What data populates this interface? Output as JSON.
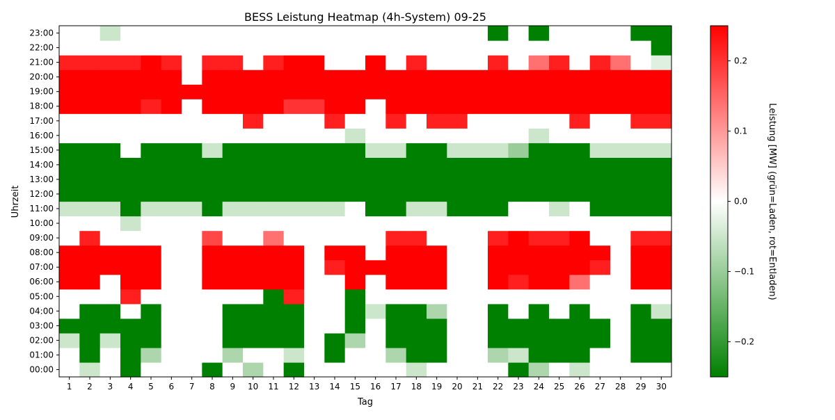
{
  "chart_data": {
    "type": "heatmap",
    "title": "BESS Leistung Heatmap (4h-System) 09-25",
    "xlabel": "Tag",
    "ylabel": "Uhrzeit",
    "colorbar_label": "Leistung [MW] (grün=Laden, rot=Entladen)",
    "colorbar_ticks": [
      "0.2",
      "0.1",
      "0.0",
      "−0.1",
      "−0.2"
    ],
    "colorbar_tick_values": [
      0.2,
      0.1,
      0.0,
      -0.1,
      -0.2
    ],
    "vmin": -0.25,
    "vmax": 0.25,
    "colors": {
      "min": "#008000",
      "mid": "#ffffff",
      "max": "#ff0000"
    },
    "x": [
      "1",
      "2",
      "3",
      "4",
      "5",
      "6",
      "7",
      "8",
      "9",
      "10",
      "11",
      "12",
      "13",
      "14",
      "15",
      "16",
      "17",
      "18",
      "19",
      "20",
      "21",
      "22",
      "23",
      "24",
      "25",
      "26",
      "27",
      "28",
      "29",
      "30"
    ],
    "y": [
      "00:00",
      "01:00",
      "02:00",
      "03:00",
      "04:00",
      "05:00",
      "06:00",
      "07:00",
      "08:00",
      "09:00",
      "10:00",
      "11:00",
      "12:00",
      "13:00",
      "14:00",
      "15:00",
      "16:00",
      "17:00",
      "18:00",
      "19:00",
      "20:00",
      "21:00",
      "22:00",
      "23:00"
    ],
    "z": [
      [
        0,
        -0.05,
        0,
        -0.25,
        0,
        0,
        0,
        -0.25,
        0,
        -0.08,
        0,
        -0.25,
        0,
        0,
        0,
        0,
        0,
        -0.05,
        0,
        0,
        0,
        0,
        -0.25,
        -0.08,
        0,
        -0.05,
        0,
        0,
        0,
        0
      ],
      [
        0,
        -0.25,
        0,
        -0.25,
        -0.08,
        0,
        0,
        0,
        -0.08,
        0,
        0,
        -0.05,
        0,
        -0.25,
        0,
        0,
        -0.08,
        -0.25,
        -0.25,
        0,
        0,
        -0.08,
        -0.05,
        -0.25,
        -0.25,
        -0.25,
        0,
        0,
        -0.25,
        -0.25
      ],
      [
        -0.05,
        -0.25,
        -0.05,
        -0.25,
        -0.25,
        0,
        0,
        0,
        -0.25,
        -0.25,
        -0.25,
        -0.25,
        0,
        -0.25,
        -0.08,
        0,
        -0.25,
        -0.25,
        -0.25,
        0,
        0,
        -0.25,
        -0.25,
        -0.25,
        -0.25,
        -0.25,
        -0.25,
        0,
        -0.25,
        -0.25
      ],
      [
        -0.25,
        -0.25,
        -0.25,
        -0.25,
        -0.25,
        0,
        0,
        0,
        -0.25,
        -0.25,
        -0.25,
        -0.25,
        0,
        0,
        -0.25,
        0,
        -0.25,
        -0.25,
        -0.25,
        0,
        0,
        -0.25,
        -0.25,
        -0.25,
        -0.25,
        -0.25,
        -0.25,
        0,
        -0.25,
        -0.25
      ],
      [
        0,
        -0.25,
        -0.25,
        0,
        -0.25,
        0,
        0,
        0,
        -0.25,
        -0.25,
        -0.25,
        -0.25,
        0,
        0,
        -0.25,
        -0.05,
        -0.25,
        -0.25,
        -0.08,
        0,
        0,
        -0.25,
        0,
        -0.25,
        0,
        -0.25,
        0,
        0,
        -0.25,
        -0.05
      ],
      [
        0,
        0,
        0,
        0.22,
        0,
        0,
        0,
        0,
        0,
        0,
        -0.25,
        0.22,
        0,
        0,
        -0.25,
        0,
        0,
        0,
        0,
        0,
        0,
        0,
        0,
        0,
        0,
        0,
        0,
        0,
        0,
        0
      ],
      [
        0.25,
        0.25,
        0,
        0.25,
        0.25,
        0,
        0,
        0.25,
        0.25,
        0.25,
        0.25,
        0.25,
        0,
        0,
        0.25,
        0,
        0.25,
        0.25,
        0.25,
        0,
        0,
        0.25,
        0.22,
        0.25,
        0.25,
        0.14,
        0,
        0,
        0.25,
        0.25
      ],
      [
        0.25,
        0.25,
        0.25,
        0.25,
        0.25,
        0,
        0,
        0.25,
        0.25,
        0.25,
        0.25,
        0.25,
        0,
        0.22,
        0.25,
        0.25,
        0.25,
        0.25,
        0.25,
        0,
        0,
        0.25,
        0.25,
        0.25,
        0.25,
        0.25,
        0.22,
        0,
        0.25,
        0.25
      ],
      [
        0.25,
        0.25,
        0.25,
        0.25,
        0.25,
        0,
        0,
        0.25,
        0.25,
        0.25,
        0.25,
        0.25,
        0,
        0.25,
        0.25,
        0,
        0.25,
        0.25,
        0.25,
        0,
        0,
        0.25,
        0.25,
        0.25,
        0.25,
        0.25,
        0.25,
        0,
        0.25,
        0.25
      ],
      [
        0,
        0.22,
        0,
        0,
        0,
        0,
        0,
        0.18,
        0,
        0,
        0.14,
        0,
        0,
        0,
        0,
        0,
        0.22,
        0.22,
        0,
        0,
        0,
        0.22,
        0.25,
        0.22,
        0.22,
        0.25,
        0,
        0,
        0.22,
        0.22
      ],
      [
        0,
        0,
        0,
        -0.05,
        0,
        0,
        0,
        0,
        0,
        0,
        0,
        0,
        0,
        0,
        0,
        0,
        0,
        0,
        0,
        0,
        0,
        0,
        0,
        0,
        0,
        0,
        0,
        0,
        0,
        0
      ],
      [
        -0.05,
        -0.05,
        -0.05,
        -0.25,
        -0.05,
        -0.05,
        -0.05,
        -0.25,
        -0.05,
        -0.05,
        -0.05,
        -0.05,
        -0.05,
        -0.05,
        0,
        -0.25,
        -0.25,
        -0.05,
        -0.05,
        -0.25,
        -0.25,
        -0.25,
        0,
        0,
        -0.05,
        0,
        -0.25,
        -0.25,
        -0.25,
        -0.25
      ],
      [
        -0.25,
        -0.25,
        -0.25,
        -0.25,
        -0.25,
        -0.25,
        -0.25,
        -0.25,
        -0.25,
        -0.25,
        -0.25,
        -0.25,
        -0.25,
        -0.25,
        -0.25,
        -0.25,
        -0.25,
        -0.25,
        -0.25,
        -0.25,
        -0.25,
        -0.25,
        -0.25,
        -0.25,
        -0.25,
        -0.25,
        -0.25,
        -0.25,
        -0.25,
        -0.25
      ],
      [
        -0.25,
        -0.25,
        -0.25,
        -0.25,
        -0.25,
        -0.25,
        -0.25,
        -0.25,
        -0.25,
        -0.25,
        -0.25,
        -0.25,
        -0.25,
        -0.25,
        -0.25,
        -0.25,
        -0.25,
        -0.25,
        -0.25,
        -0.25,
        -0.25,
        -0.25,
        -0.25,
        -0.25,
        -0.25,
        -0.25,
        -0.25,
        -0.25,
        -0.25,
        -0.25
      ],
      [
        -0.25,
        -0.25,
        -0.25,
        -0.25,
        -0.25,
        -0.25,
        -0.25,
        -0.25,
        -0.25,
        -0.25,
        -0.25,
        -0.25,
        -0.25,
        -0.25,
        -0.25,
        -0.25,
        -0.25,
        -0.25,
        -0.25,
        -0.25,
        -0.25,
        -0.25,
        -0.25,
        -0.25,
        -0.25,
        -0.25,
        -0.25,
        -0.25,
        -0.25,
        -0.25
      ],
      [
        -0.25,
        -0.25,
        -0.25,
        0,
        -0.25,
        -0.25,
        -0.25,
        -0.05,
        -0.25,
        -0.25,
        -0.25,
        -0.25,
        -0.25,
        -0.25,
        -0.25,
        -0.05,
        -0.05,
        -0.25,
        -0.25,
        -0.05,
        -0.05,
        -0.05,
        -0.1,
        -0.25,
        -0.25,
        -0.25,
        -0.05,
        -0.05,
        -0.05,
        -0.05
      ],
      [
        0,
        0,
        0,
        0,
        0,
        0,
        0,
        0,
        0,
        0,
        0,
        0,
        0,
        0,
        -0.05,
        0,
        0,
        0,
        0,
        0,
        0,
        0,
        0,
        -0.05,
        0,
        0,
        0,
        0,
        0,
        0
      ],
      [
        0,
        0,
        0,
        0,
        0,
        0,
        0,
        0,
        0,
        0.22,
        0,
        0,
        0,
        0.22,
        0,
        0,
        0.22,
        0,
        0.22,
        0.22,
        0,
        0,
        0,
        0,
        0,
        0.22,
        0,
        0,
        0.22,
        0.22
      ],
      [
        0.25,
        0.25,
        0.25,
        0.25,
        0.22,
        0.25,
        0,
        0.25,
        0.25,
        0.25,
        0.25,
        0.2,
        0.2,
        0.25,
        0.25,
        0,
        0.25,
        0.25,
        0.25,
        0.25,
        0.25,
        0.25,
        0.25,
        0.25,
        0.25,
        0.25,
        0.25,
        0.25,
        0.25,
        0.25
      ],
      [
        0.25,
        0.25,
        0.25,
        0.25,
        0.25,
        0.25,
        0.25,
        0.25,
        0.25,
        0.25,
        0.25,
        0.25,
        0.25,
        0.25,
        0.25,
        0.25,
        0.25,
        0.25,
        0.25,
        0.25,
        0.25,
        0.25,
        0.25,
        0.25,
        0.25,
        0.25,
        0.25,
        0.25,
        0.25,
        0.25
      ],
      [
        0.25,
        0.25,
        0.25,
        0.25,
        0.25,
        0.25,
        0,
        0.25,
        0.25,
        0.25,
        0.25,
        0.25,
        0.25,
        0.25,
        0.25,
        0.25,
        0.25,
        0.25,
        0.25,
        0.25,
        0.25,
        0.25,
        0.25,
        0.25,
        0.25,
        0.25,
        0.25,
        0.25,
        0.25,
        0.25
      ],
      [
        0.22,
        0.22,
        0.22,
        0.22,
        0.25,
        0.22,
        0,
        0.22,
        0.22,
        0,
        0.22,
        0.25,
        0.25,
        0,
        0,
        0.25,
        0,
        0.22,
        0,
        0,
        0,
        0.22,
        0,
        0.14,
        0.22,
        0,
        0.22,
        0.14,
        0,
        -0.03
      ],
      [
        0,
        0,
        0,
        0,
        0,
        0,
        0,
        0,
        0,
        0,
        0,
        0,
        0,
        0,
        0,
        0,
        0,
        0,
        0,
        0,
        0,
        0,
        0,
        0,
        0,
        0,
        0,
        0,
        0,
        -0.25
      ],
      [
        0,
        0,
        -0.05,
        0,
        0,
        0,
        0,
        0,
        0,
        0,
        0,
        0,
        0,
        0,
        0,
        0,
        0,
        0,
        0,
        0,
        0,
        -0.25,
        0,
        -0.25,
        0,
        0,
        0,
        0,
        -0.25,
        -0.25
      ]
    ]
  }
}
